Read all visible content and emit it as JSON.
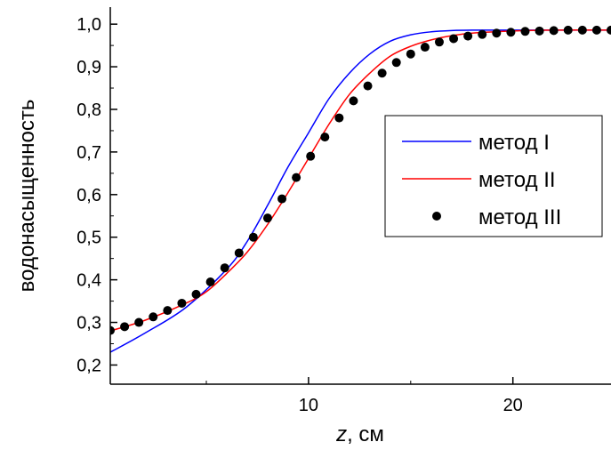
{
  "chart_data": {
    "type": "line",
    "xlabel_var": "z",
    "xlabel_unit": ", см",
    "ylabel": "водонасыщенность",
    "xlim": [
      0.3,
      24.8
    ],
    "ylim": [
      0.155,
      1.04
    ],
    "x_ticks": [
      10,
      20
    ],
    "x_tick_labels": [
      "10",
      "20"
    ],
    "y_ticks": [
      0.2,
      0.3,
      0.4,
      0.5,
      0.6,
      0.7,
      0.8,
      0.9,
      1.0
    ],
    "y_tick_labels": [
      "0,2",
      "0,3",
      "0,4",
      "0,5",
      "0,6",
      "0,7",
      "0,8",
      "0,9",
      "1,0"
    ],
    "legend_position": "right-middle",
    "series": [
      {
        "name": "метод I",
        "color": "#0000ff",
        "style": "line",
        "x": [
          0.3,
          2,
          4,
          6,
          7,
          8,
          9,
          10,
          11,
          12,
          13,
          14,
          15,
          16,
          17,
          18,
          20,
          22,
          24.8
        ],
        "y": [
          0.23,
          0.275,
          0.335,
          0.425,
          0.49,
          0.575,
          0.665,
          0.745,
          0.825,
          0.885,
          0.93,
          0.96,
          0.975,
          0.982,
          0.985,
          0.986,
          0.986,
          0.986,
          0.986
        ]
      },
      {
        "name": "метод II",
        "color": "#ff0000",
        "style": "line",
        "x": [
          0.3,
          2,
          4,
          5,
          6,
          7,
          8,
          9,
          10,
          11,
          12,
          13,
          14,
          15,
          16,
          17,
          18,
          20,
          22,
          24.8
        ],
        "y": [
          0.28,
          0.305,
          0.345,
          0.372,
          0.415,
          0.465,
          0.53,
          0.605,
          0.685,
          0.765,
          0.835,
          0.885,
          0.925,
          0.948,
          0.963,
          0.973,
          0.979,
          0.984,
          0.986,
          0.986
        ]
      },
      {
        "name": "метод III",
        "color": "#000000",
        "style": "markers",
        "x": [
          0.3,
          1.0,
          1.7,
          2.4,
          3.1,
          3.8,
          4.5,
          5.2,
          5.9,
          6.6,
          7.3,
          8.0,
          8.7,
          9.4,
          10.1,
          10.8,
          11.5,
          12.2,
          12.9,
          13.6,
          14.3,
          15.0,
          15.7,
          16.4,
          17.1,
          17.8,
          18.5,
          19.2,
          19.9,
          20.6,
          21.3,
          22.0,
          22.7,
          23.4,
          24.1,
          24.8
        ],
        "y": [
          0.281,
          0.29,
          0.3,
          0.313,
          0.328,
          0.345,
          0.366,
          0.395,
          0.428,
          0.463,
          0.5,
          0.545,
          0.59,
          0.64,
          0.69,
          0.735,
          0.78,
          0.82,
          0.855,
          0.885,
          0.91,
          0.93,
          0.946,
          0.958,
          0.966,
          0.972,
          0.976,
          0.979,
          0.981,
          0.983,
          0.984,
          0.985,
          0.986,
          0.986,
          0.986,
          0.986
        ]
      }
    ]
  }
}
